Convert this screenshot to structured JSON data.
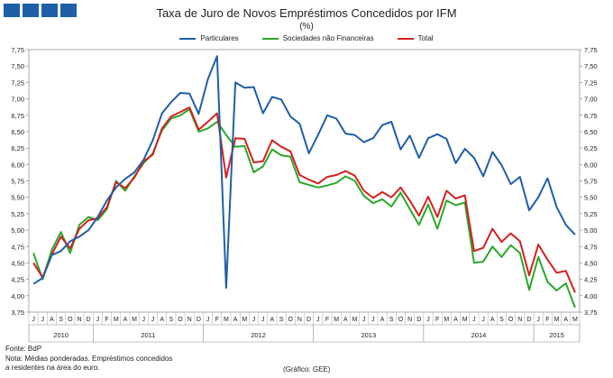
{
  "header": {
    "title": "Taxa de Juro de Novos Empréstimos Concedidos por IFM",
    "subtitle": "(%)"
  },
  "footer": {
    "source": "Fonte: BdP",
    "note_line1": "Nota: Médias ponderadas.  Empréstimos concedidos",
    "note_line2": "a residentes na área do euro.",
    "credit": "(Gráfico: GEE)"
  },
  "chart_data": {
    "type": "line",
    "title": "Taxa de Juro de Novos Empréstimos Concedidos por IFM",
    "subtitle": "(%)",
    "xlabel": "",
    "ylabel": "%",
    "ylim": [
      3.75,
      7.75
    ],
    "y_ticks": [
      "3,75",
      "4,00",
      "4,25",
      "4,50",
      "4,75",
      "5,00",
      "5,25",
      "5,50",
      "5,75",
      "6,00",
      "6,25",
      "6,50",
      "6,75",
      "7,00",
      "7,25",
      "7,50",
      "7,75"
    ],
    "axes": "left and right, identical scale",
    "legend_position": "top-center",
    "categories": [
      "J",
      "J",
      "A",
      "S",
      "O",
      "N",
      "D",
      "J",
      "F",
      "M",
      "A",
      "M",
      "J",
      "J",
      "A",
      "S",
      "O",
      "N",
      "D",
      "J",
      "F",
      "M",
      "A",
      "M",
      "J",
      "J",
      "A",
      "S",
      "O",
      "N",
      "D",
      "J",
      "F",
      "M",
      "A",
      "M",
      "J",
      "J",
      "A",
      "S",
      "O",
      "N",
      "D",
      "J",
      "F",
      "M",
      "A",
      "M",
      "J",
      "J",
      "A",
      "S",
      "O",
      "N",
      "D",
      "J",
      "F",
      "M",
      "A",
      "M"
    ],
    "year_groups": [
      {
        "label": "2010",
        "count": 7
      },
      {
        "label": "2011",
        "count": 12
      },
      {
        "label": "2012",
        "count": 12
      },
      {
        "label": "2013",
        "count": 12
      },
      {
        "label": "2014",
        "count": 12
      },
      {
        "label": "2015",
        "count": 5
      }
    ],
    "series": [
      {
        "name": "Particulares",
        "color": "#1f5fa8",
        "values": [
          4.18,
          4.27,
          4.62,
          4.68,
          4.83,
          4.9,
          5.0,
          5.2,
          5.45,
          5.65,
          5.78,
          5.88,
          6.07,
          6.37,
          6.78,
          6.95,
          7.09,
          7.08,
          6.77,
          7.3,
          7.65,
          4.12,
          7.25,
          7.17,
          7.18,
          6.78,
          7.03,
          6.99,
          6.73,
          6.62,
          6.17,
          6.45,
          6.75,
          6.7,
          6.47,
          6.45,
          6.34,
          6.4,
          6.6,
          6.65,
          6.23,
          6.44,
          6.1,
          6.4,
          6.46,
          6.39,
          6.02,
          6.24,
          6.1,
          5.82,
          6.19,
          5.99,
          5.7,
          5.81,
          5.3,
          5.5,
          5.79,
          5.35,
          5.08,
          4.93
        ]
      },
      {
        "name": "Sociedades não Financeiras",
        "color": "#2aa82a",
        "values": [
          4.65,
          4.25,
          4.7,
          4.97,
          4.65,
          5.08,
          5.2,
          5.15,
          5.32,
          5.75,
          5.6,
          5.82,
          6.02,
          6.17,
          6.52,
          6.7,
          6.75,
          6.84,
          6.5,
          6.55,
          6.65,
          6.45,
          6.27,
          6.28,
          5.88,
          5.97,
          6.23,
          6.14,
          6.12,
          5.73,
          5.69,
          5.65,
          5.68,
          5.72,
          5.82,
          5.75,
          5.52,
          5.41,
          5.47,
          5.36,
          5.57,
          5.32,
          5.08,
          5.39,
          5.02,
          5.45,
          5.38,
          5.42,
          4.5,
          4.52,
          4.75,
          4.59,
          4.77,
          4.65,
          4.09,
          4.59,
          4.21,
          4.08,
          4.19,
          3.82
        ]
      },
      {
        "name": "Total",
        "color": "#d42020",
        "values": [
          4.5,
          4.28,
          4.63,
          4.9,
          4.72,
          5.02,
          5.15,
          5.18,
          5.35,
          5.73,
          5.64,
          5.8,
          6.05,
          6.15,
          6.55,
          6.73,
          6.8,
          6.87,
          6.53,
          6.65,
          6.78,
          5.8,
          6.4,
          6.39,
          6.03,
          6.05,
          6.37,
          6.27,
          6.2,
          5.84,
          5.77,
          5.71,
          5.81,
          5.84,
          5.9,
          5.83,
          5.6,
          5.49,
          5.58,
          5.5,
          5.65,
          5.45,
          5.22,
          5.51,
          5.2,
          5.6,
          5.48,
          5.53,
          4.68,
          4.73,
          5.02,
          4.82,
          4.95,
          4.83,
          4.31,
          4.78,
          4.55,
          4.35,
          4.38,
          4.05
        ]
      }
    ]
  }
}
